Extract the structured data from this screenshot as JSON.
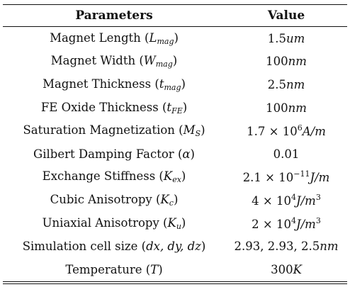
{
  "header": {
    "parameters": "Parameters",
    "value": "Value"
  },
  "rows": [
    {
      "label": "Magnet Length",
      "sym_open": "(",
      "sym": "L",
      "sym_sub": "mag",
      "sym_close": ")",
      "val_text": "1.5",
      "val_unit": "um",
      "val_sup": ""
    },
    {
      "label": "Magnet Width",
      "sym_open": "(",
      "sym": "W",
      "sym_sub": "mag",
      "sym_close": ")",
      "val_text": "100",
      "val_unit": "nm",
      "val_sup": ""
    },
    {
      "label": "Magnet Thickness",
      "sym_open": "(",
      "sym": "t",
      "sym_sub": "mag",
      "sym_close": ")",
      "val_text": "2.5",
      "val_unit": "nm",
      "val_sup": ""
    },
    {
      "label": "FE Oxide Thickness",
      "sym_open": "(",
      "sym": "t",
      "sym_sub": "FE",
      "sym_close": ")",
      "val_text": "100",
      "val_unit": "nm",
      "val_sup": ""
    },
    {
      "label": "Saturation Magnetization",
      "sym_open": "(",
      "sym": "M",
      "sym_sub": "S",
      "sym_close": ")",
      "val_text": "1.7 × 10",
      "val_sup": "6",
      "val_unit": "A/m"
    },
    {
      "label": "Gilbert Damping Factor",
      "sym_open": "(",
      "sym": "α",
      "sym_sub": "",
      "sym_close": ")",
      "val_text": "0.01",
      "val_unit": "",
      "val_sup": ""
    },
    {
      "label": "Exchange Stiffness",
      "sym_open": "(",
      "sym": "K",
      "sym_sub": "ex",
      "sym_close": ")",
      "val_text": "2.1 × 10",
      "val_sup": "−11",
      "val_unit": "J/m"
    },
    {
      "label": "Cubic Anisotropy",
      "sym_open": "(",
      "sym": "K",
      "sym_sub": "c",
      "sym_close": ")",
      "val_text": "4 × 10",
      "val_sup": "4",
      "val_unit": "J/m",
      "val_unit_sup": "3"
    },
    {
      "label": "Uniaxial Anisotropy",
      "sym_open": "(",
      "sym": "K",
      "sym_sub": "u",
      "sym_close": ")",
      "val_text": "2 × 10",
      "val_sup": "4",
      "val_unit": "J/m",
      "val_unit_sup": "3"
    },
    {
      "label": "Simulation cell size",
      "sym_open": "(",
      "sym": "dx, dy, dz",
      "sym_sub": "",
      "sym_close": ")",
      "val_text": "2.93, 2.93, 2.5",
      "val_unit": "nm",
      "val_sup": ""
    },
    {
      "label": "Temperature",
      "sym_open": "(",
      "sym": "T",
      "sym_sub": "",
      "sym_close": ")",
      "val_text": "300",
      "val_unit": "K",
      "val_sup": ""
    }
  ]
}
